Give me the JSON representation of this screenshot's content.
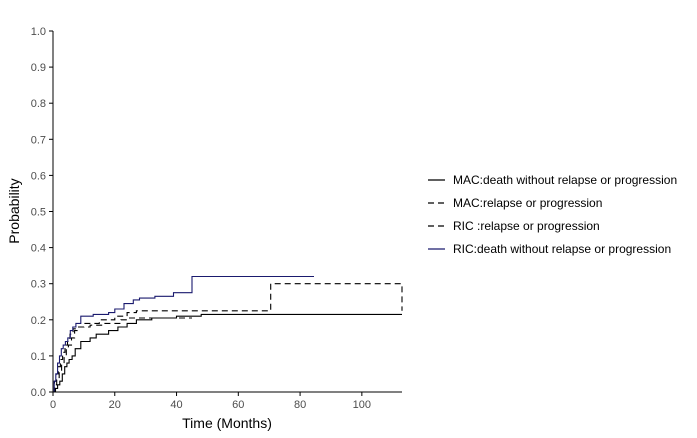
{
  "chart_data": {
    "type": "line",
    "step": true,
    "xlabel": "Time (Months)",
    "ylabel": "Probability",
    "xlim": [
      0,
      113
    ],
    "ylim": [
      0,
      1
    ],
    "xticks": [
      0,
      20,
      40,
      60,
      80,
      100
    ],
    "yticks": [
      0.0,
      0.1,
      0.2,
      0.3,
      0.4,
      0.5,
      0.6,
      0.7,
      0.8,
      0.9,
      1.0
    ],
    "ytick_labels": [
      "0.0",
      "0.1",
      "0.2",
      "0.3",
      "0.4",
      "0.5",
      "0.6",
      "0.7",
      "0.8",
      "0.9",
      "1.0"
    ],
    "grid": false,
    "legend_position": "right",
    "series": [
      {
        "name": "MAC:death without relapse or progression",
        "color": "#000000",
        "dash": "solid",
        "x": [
          0,
          0.8,
          1.5,
          2.2,
          3,
          3.8,
          4.5,
          5.2,
          6.2,
          7.2,
          9,
          12,
          14,
          18,
          21,
          24,
          27,
          32,
          40,
          48,
          113
        ],
        "y": [
          0,
          0.01,
          0.02,
          0.03,
          0.05,
          0.07,
          0.08,
          0.09,
          0.1,
          0.12,
          0.14,
          0.15,
          0.16,
          0.17,
          0.18,
          0.19,
          0.2,
          0.205,
          0.21,
          0.215,
          0.215
        ]
      },
      {
        "name": "MAC:relapse or progression",
        "color": "#000000",
        "dash": "dashed",
        "x": [
          0,
          0.6,
          1.2,
          2,
          2.8,
          3.6,
          4.3,
          5,
          6,
          7,
          8,
          12,
          16,
          22,
          24,
          27,
          45
        ],
        "y": [
          0,
          0.02,
          0.04,
          0.06,
          0.08,
          0.1,
          0.12,
          0.13,
          0.15,
          0.17,
          0.18,
          0.185,
          0.19,
          0.2,
          0.205,
          0.205,
          0.205
        ]
      },
      {
        "name": "RIC :relapse or progression",
        "color": "#000000",
        "dash": "dashed",
        "x": [
          0,
          0.5,
          1,
          1.7,
          2.4,
          3.1,
          3.9,
          4.7,
          5.5,
          6.5,
          7.5,
          10,
          15,
          20,
          24,
          27,
          70.5,
          84,
          113
        ],
        "y": [
          0,
          0.03,
          0.05,
          0.07,
          0.09,
          0.11,
          0.13,
          0.14,
          0.16,
          0.175,
          0.18,
          0.19,
          0.2,
          0.21,
          0.22,
          0.225,
          0.3,
          0.3,
          0.225
        ]
      },
      {
        "name": "RIC:death without relapse or progression",
        "color": "#1a1a6e",
        "dash": "solid",
        "x": [
          0,
          0.4,
          0.9,
          1.5,
          2.1,
          2.7,
          3.3,
          4,
          4.8,
          5.6,
          6.4,
          7.4,
          9,
          13,
          18,
          20,
          23,
          26,
          28,
          33,
          39,
          45,
          84.5
        ],
        "y": [
          0,
          0.03,
          0.05,
          0.08,
          0.1,
          0.12,
          0.13,
          0.14,
          0.15,
          0.17,
          0.18,
          0.19,
          0.21,
          0.215,
          0.22,
          0.23,
          0.245,
          0.255,
          0.26,
          0.265,
          0.275,
          0.32,
          0.32
        ]
      }
    ]
  }
}
